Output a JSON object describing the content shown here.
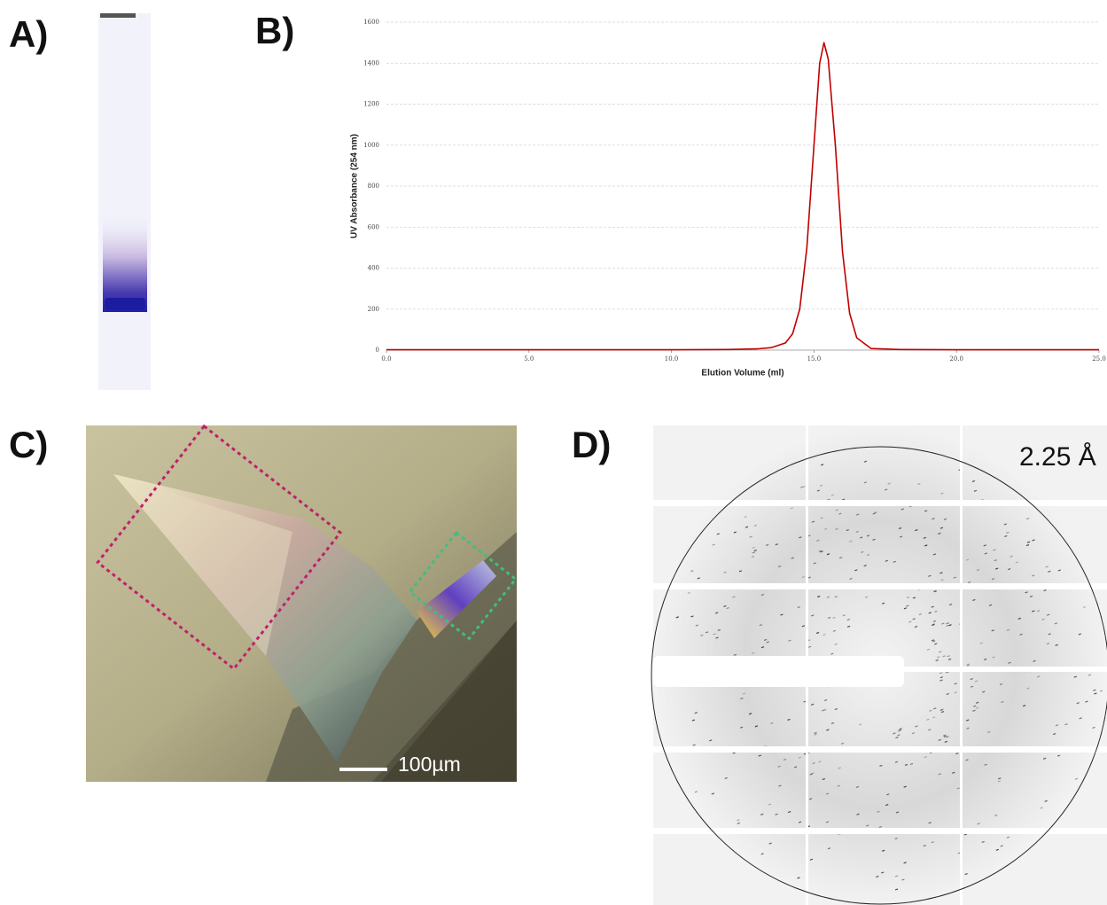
{
  "labels": {
    "a": "A)",
    "b": "B)",
    "c": "C)",
    "d": "D)"
  },
  "chart_data": {
    "type": "line",
    "xlabel": "Elution Volume (ml)",
    "ylabel": "UV Absorbance (254 nm)",
    "x": [
      0,
      2,
      4,
      6,
      8,
      10,
      12,
      13,
      13.5,
      14,
      14.25,
      14.5,
      14.75,
      15,
      15.2,
      15.35,
      15.5,
      15.75,
      16,
      16.25,
      16.5,
      17,
      18,
      20,
      25
    ],
    "values": [
      2,
      2,
      2,
      2,
      2,
      2,
      3,
      6,
      12,
      35,
      80,
      200,
      500,
      1000,
      1400,
      1500,
      1420,
      1000,
      480,
      180,
      60,
      8,
      3,
      2,
      2
    ],
    "color": "#c00000",
    "xlim": [
      0,
      25
    ],
    "xticks": [
      {
        "value": 0,
        "label": "0.0"
      },
      {
        "value": 5,
        "label": "5.0"
      },
      {
        "value": 10,
        "label": "10.0"
      },
      {
        "value": 15,
        "label": "15.0"
      },
      {
        "value": 20,
        "label": "20.0"
      },
      {
        "value": 25,
        "label": "25.0"
      }
    ],
    "ylim": [
      0,
      1600
    ],
    "yticks": [
      0,
      200,
      400,
      600,
      800,
      1000,
      1200,
      1400,
      1600
    ],
    "grid": true
  },
  "scale_bar": "100µm",
  "resolution": "2.25 Å"
}
